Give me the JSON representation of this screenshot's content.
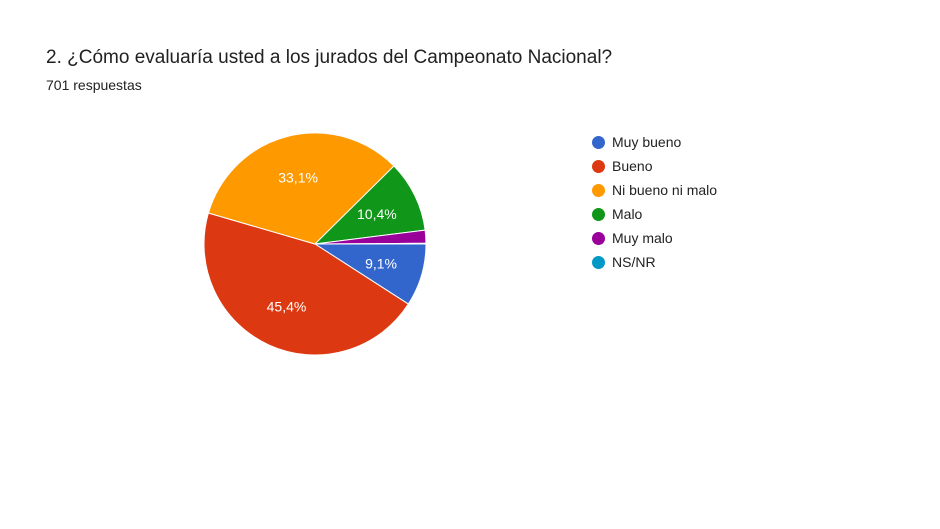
{
  "header": {
    "title": "2. ¿Cómo evaluaría usted a los jurados del Campeonato Nacional?",
    "subtitle": "701 respuestas"
  },
  "chart_data": {
    "type": "pie",
    "title": "2. ¿Cómo evaluaría usted a los jurados del Campeonato Nacional?",
    "legend_position": "right",
    "slices": [
      {
        "label": "Muy bueno",
        "value": 9.1,
        "display": "9,1%",
        "color": "#3366cc"
      },
      {
        "label": "Bueno",
        "value": 45.4,
        "display": "45,4%",
        "color": "#dc3912"
      },
      {
        "label": "Ni bueno ni malo",
        "value": 33.1,
        "display": "33,1%",
        "color": "#ff9900"
      },
      {
        "label": "Malo",
        "value": 10.4,
        "display": "10,4%",
        "color": "#109618"
      },
      {
        "label": "Muy malo",
        "value": 1.9,
        "display": "",
        "color": "#990099"
      },
      {
        "label": "NS/NR",
        "value": 0.1,
        "display": "",
        "color": "#0099c6"
      }
    ]
  }
}
